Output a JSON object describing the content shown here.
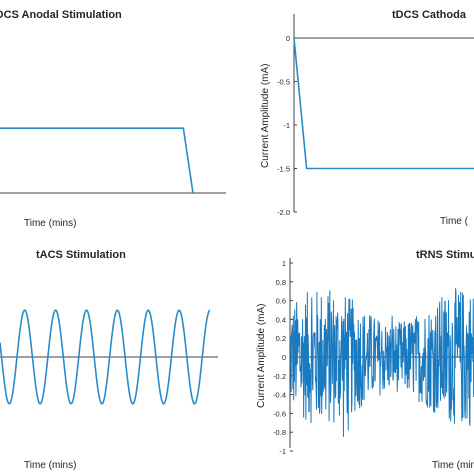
{
  "charts": [
    {
      "key": "tl",
      "title": "tDCS Anodal Stimulation",
      "xlabel": "Time (mins)",
      "ylabel": "",
      "colors": {
        "signal": "#2a8bc9",
        "zero": "#404040"
      }
    },
    {
      "key": "tr",
      "title": "tDCS Cathoda",
      "xlabel": "Time (",
      "ylabel": "Current Amplitude (mA)",
      "colors": {
        "signal": "#2a8bc9",
        "zero": "#404040"
      }
    },
    {
      "key": "bl",
      "title": "tACS Stimulation",
      "xlabel": "Time (mins)",
      "ylabel": "",
      "colors": {
        "signal": "#2a8bc9",
        "zero": "#404040"
      }
    },
    {
      "key": "br",
      "title": "tRNS Stimu",
      "xlabel": "Time (mins",
      "ylabel": "Current Amplitude (mA)",
      "colors": {
        "signal": "#1a7abf",
        "zero": "#404040"
      }
    }
  ],
  "chart_data": [
    {
      "type": "line",
      "title": "tDCS Anodal Stimulation",
      "xlabel": "Time (mins)",
      "ylabel": "",
      "xlim": [
        0,
        1
      ],
      "ylim": [
        0,
        1
      ],
      "series": [
        {
          "x": [
            0,
            0.95,
            1.0
          ],
          "y": [
            0.72,
            0.72,
            0
          ]
        }
      ]
    },
    {
      "type": "line",
      "title": "tDCS Cathoda",
      "xlabel": "Time (",
      "ylabel": "Current Amplitude (mA)",
      "xlim": [
        0,
        1
      ],
      "ylim": [
        -2.0,
        0.2
      ],
      "yticks": [
        "0",
        "-0.5",
        "-1",
        "-1.5",
        "-2.0"
      ],
      "series": [
        {
          "x": [
            0,
            0.07,
            1.0
          ],
          "y": [
            0,
            -1.5,
            -1.5
          ]
        }
      ]
    },
    {
      "type": "line",
      "title": "tACS Stimulation",
      "xlabel": "Time (mins)",
      "ylabel": "",
      "xlim": [
        0,
        1
      ],
      "ylim": [
        -1,
        1
      ],
      "series": [
        {
          "function": "sine",
          "cycles": 6.8,
          "amplitude": 0.9
        }
      ]
    },
    {
      "type": "line",
      "title": "tRNS Stimu",
      "xlabel": "Time (mins",
      "ylabel": "Current Amplitude (mA)",
      "xlim": [
        0,
        1
      ],
      "ylim": [
        -1,
        1
      ],
      "yticks": [
        "1",
        "0.8",
        "0.6",
        "0.4",
        "0.2",
        "0",
        "-0.2",
        "-0.4",
        "-0.6",
        "-0.8",
        "-1"
      ],
      "series": [
        {
          "function": "random-noise",
          "amplitude": 0.6,
          "samples": 500
        }
      ]
    }
  ]
}
